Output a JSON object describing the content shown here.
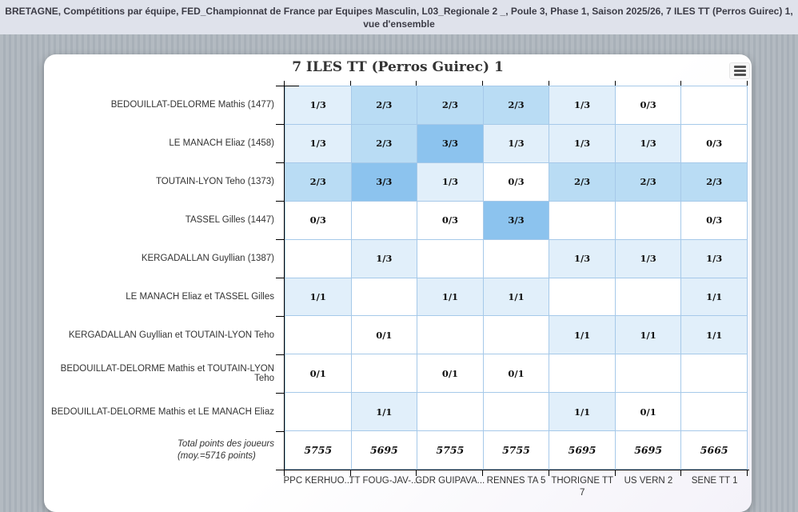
{
  "header": {
    "breadcrumb": "BRETAGNE, Compétitions par équipe, FED_Championnat de France par Equipes Masculin, L03_Regionale 2 _, Poule 3, Phase 1, Saison 2025/26, 7 ILES TT (Perros Guirec) 1, vue d'ensemble"
  },
  "chart": {
    "title": "7 ILES TT (Perros Guirec) 1",
    "menu_icon": "hamburger-icon"
  },
  "colors": {
    "wins0": "#ffffff",
    "wins1": "#e1effa",
    "wins2": "#b9dcf4",
    "wins3": "#8cc3ee",
    "cell_border": "#a6c9e9",
    "axis": "#000000",
    "label_text": "#333333",
    "topbar_bg": "#dfe2eb"
  },
  "chart_data": {
    "type": "heatmap",
    "title": "7 ILES TT (Perros Guirec) 1",
    "values_format": "victoires/parties (ex: 2/3) ; dernière ligne = total de points",
    "columns": [
      "PPC KERHUO...",
      "TT FOUG-JAV-...",
      "GDR GUIPAVA...",
      "RENNES TA 5",
      "THORIGNE TT 7",
      "US VERN 2",
      "SENE TT 1"
    ],
    "column_label_lines": [
      [
        "PPC KERHUO..."
      ],
      [
        "TT FOUG-JAV-..."
      ],
      [
        "GDR GUIPAVA..."
      ],
      [
        "RENNES TA 5"
      ],
      [
        "THORIGNE TT",
        "7"
      ],
      [
        "US VERN 2"
      ],
      [
        "SENE TT 1"
      ]
    ],
    "rows": [
      {
        "label": "BEDOUILLAT-DELORME Mathis (1477)",
        "cells": [
          "1/3",
          "2/3",
          "2/3",
          "2/3",
          "1/3",
          "0/3",
          null
        ]
      },
      {
        "label": "LE MANACH Eliaz (1458)",
        "cells": [
          "1/3",
          "2/3",
          "3/3",
          "1/3",
          "1/3",
          "1/3",
          "0/3"
        ]
      },
      {
        "label": "TOUTAIN-LYON Teho (1373)",
        "cells": [
          "2/3",
          "3/3",
          "1/3",
          "0/3",
          "2/3",
          "2/3",
          "2/3"
        ]
      },
      {
        "label": "TASSEL Gilles (1447)",
        "cells": [
          "0/3",
          null,
          "0/3",
          "3/3",
          null,
          null,
          "0/3"
        ]
      },
      {
        "label": "KERGADALLAN Guyllian (1387)",
        "cells": [
          null,
          "1/3",
          null,
          null,
          "1/3",
          "1/3",
          "1/3"
        ]
      },
      {
        "label": "LE MANACH Eliaz et TASSEL Gilles",
        "cells": [
          "1/1",
          null,
          "1/1",
          "1/1",
          null,
          null,
          "1/1"
        ]
      },
      {
        "label": "KERGADALLAN Guyllian et TOUTAIN-LYON Teho",
        "cells": [
          null,
          "0/1",
          null,
          null,
          "1/1",
          "1/1",
          "1/1"
        ]
      },
      {
        "label": "BEDOUILLAT-DELORME Mathis et TOUTAIN-LYON Teho",
        "cells": [
          "0/1",
          null,
          "0/1",
          "0/1",
          null,
          null,
          null
        ]
      },
      {
        "label": "BEDOUILLAT-DELORME Mathis et LE MANACH Eliaz",
        "cells": [
          null,
          "1/1",
          null,
          null,
          "1/1",
          "0/1",
          null
        ]
      },
      {
        "label": "Total points des joueurs",
        "label2": "(moy.=5716 points)",
        "is_total": true,
        "cells": [
          "5755",
          "5695",
          "5755",
          "5755",
          "5695",
          "5695",
          "5665"
        ]
      }
    ]
  }
}
